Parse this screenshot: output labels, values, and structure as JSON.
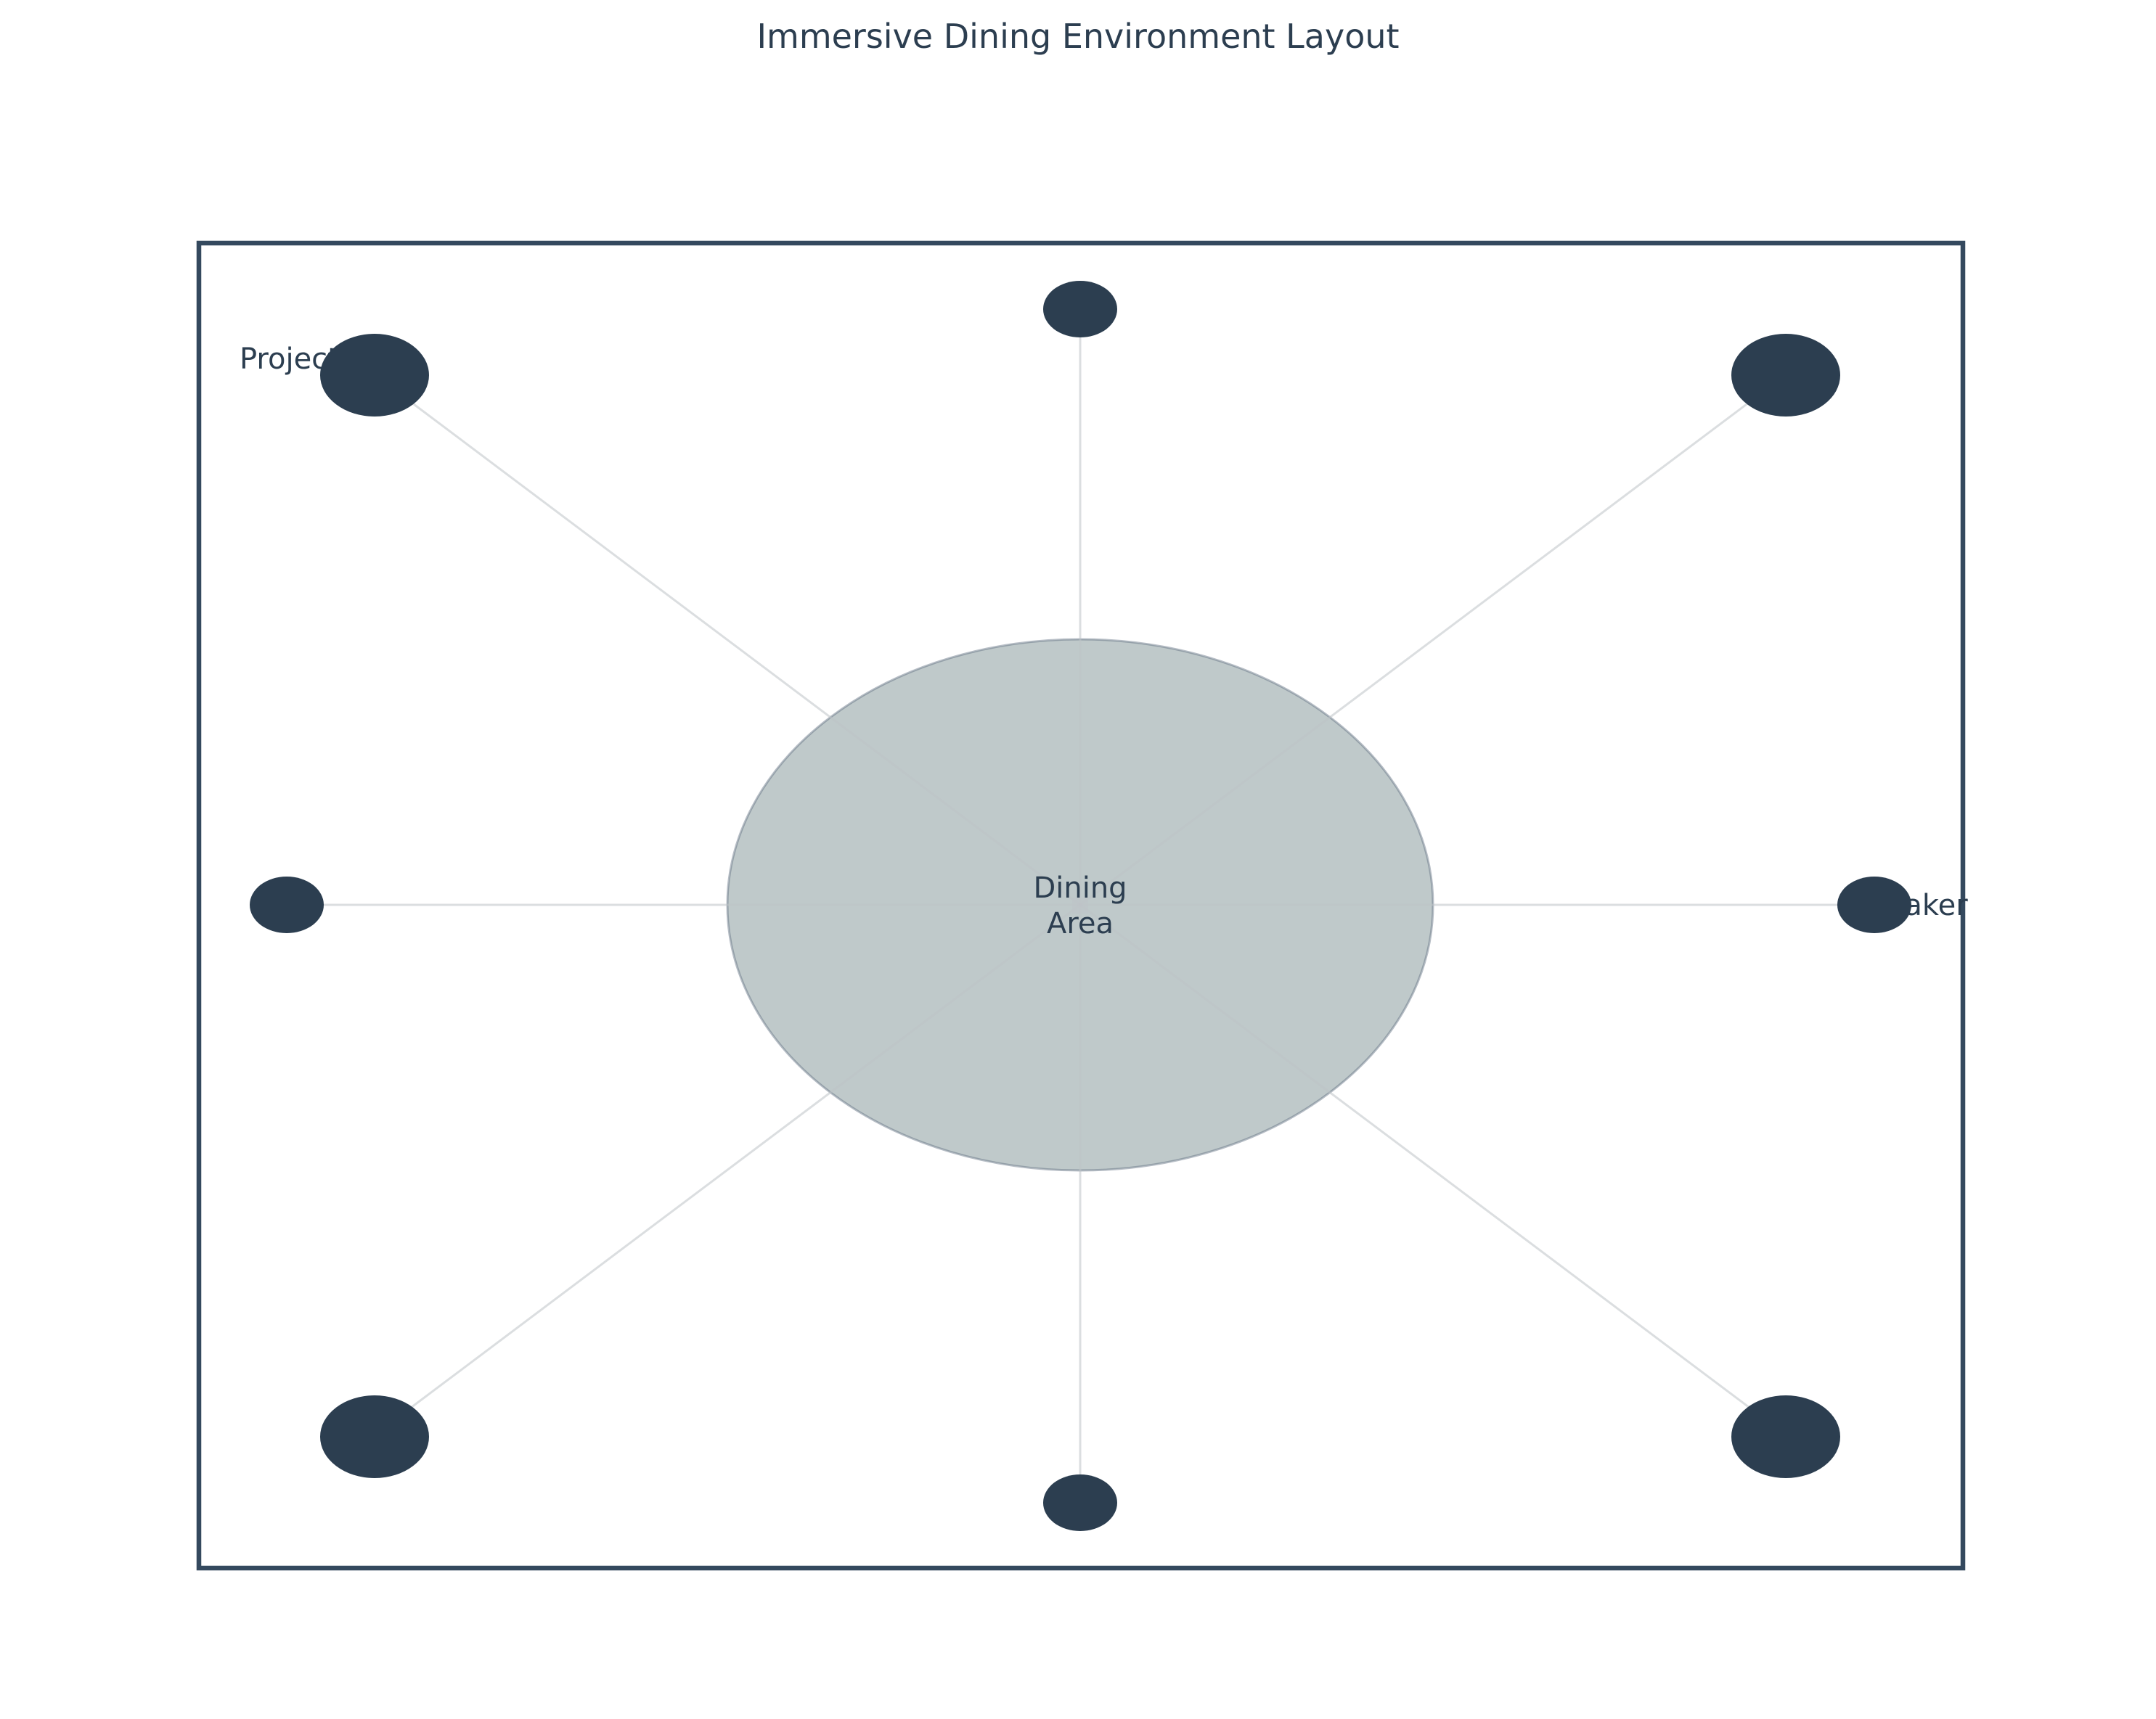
{
  "title": "Immersive Dining Environment Layout",
  "dining_area": {
    "label_line1": "Dining",
    "label_line2": "Area"
  },
  "device_labels": {
    "projector": "Projector",
    "speaker": "Speaker"
  },
  "colors": {
    "text": "#2c3e50",
    "device": "#2c3e50",
    "room_border": "#34495e",
    "dining_area": "#95a5a6",
    "connector": "#bdc3c7"
  }
}
